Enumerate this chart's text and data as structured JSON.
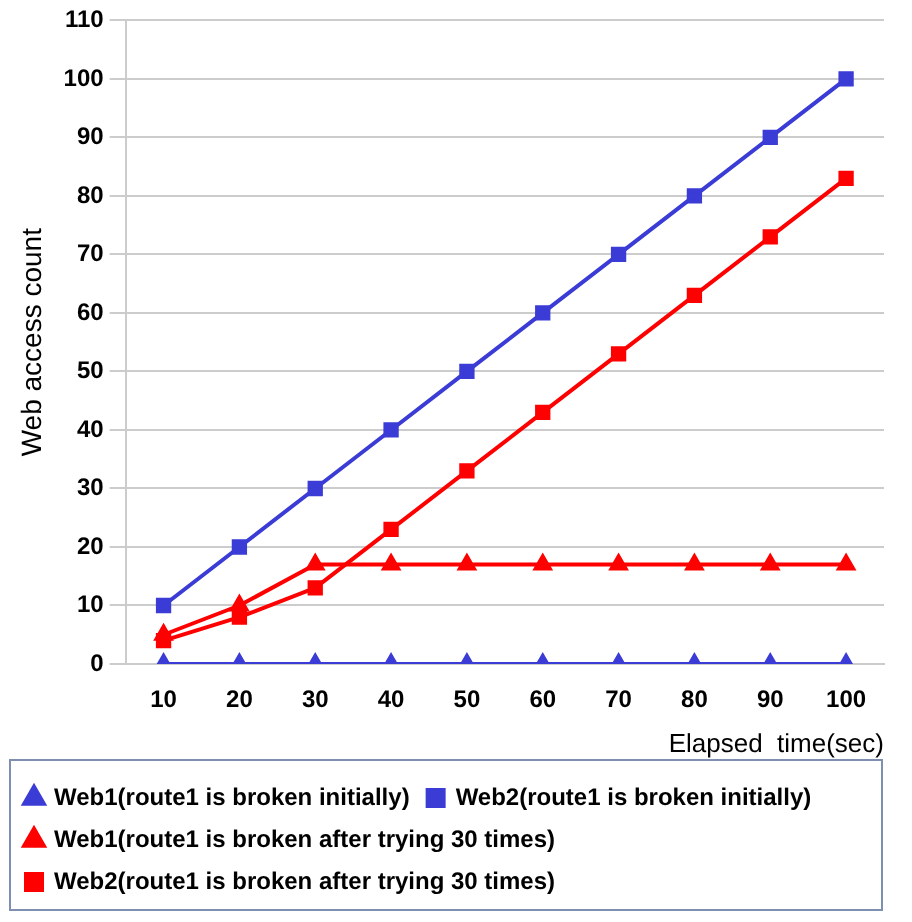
{
  "chart_data": {
    "type": "line",
    "xlabel": "Elapsed  time(sec)",
    "ylabel": "Web access count",
    "categories": [
      "10",
      "20",
      "30",
      "40",
      "50",
      "60",
      "70",
      "80",
      "90",
      "100"
    ],
    "ylim": [
      0,
      110
    ],
    "yticks": [
      0,
      10,
      20,
      30,
      40,
      50,
      60,
      70,
      80,
      90,
      100,
      110
    ],
    "grid": "y",
    "legend": "bottom",
    "series": [
      {
        "name": "Web1(route1 is broken initially)",
        "color": "#3b3bd6",
        "marker": "triangle",
        "values": [
          0,
          0,
          0,
          0,
          0,
          0,
          0,
          0,
          0,
          0
        ]
      },
      {
        "name": "Web2(route1 is broken initially)",
        "color": "#3b3bd6",
        "marker": "square",
        "values": [
          10,
          20,
          30,
          40,
          50,
          60,
          70,
          80,
          90,
          100
        ]
      },
      {
        "name": "Web1(route1 is broken after trying 30 times)",
        "color": "#ff0000",
        "marker": "triangle",
        "values": [
          5,
          10,
          17,
          17,
          17,
          17,
          17,
          17,
          17,
          17
        ]
      },
      {
        "name": "Web2(route1 is broken after trying 30 times)",
        "color": "#ff0000",
        "marker": "square",
        "values": [
          4,
          8,
          13,
          23,
          33,
          43,
          53,
          63,
          73,
          83
        ]
      }
    ]
  }
}
